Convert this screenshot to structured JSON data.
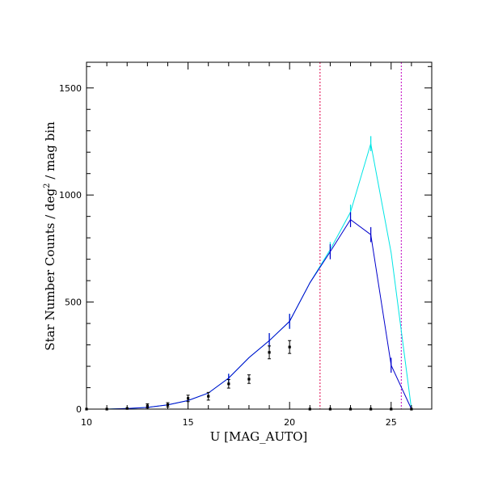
{
  "chart_data": {
    "type": "line",
    "xlabel": "U [MAG_AUTO]",
    "ylabel_main": "Star Number Counts / deg",
    "ylabel_sup": "2",
    "ylabel_tail": " / mag bin",
    "xlim": [
      10,
      27
    ],
    "ylim": [
      0,
      1620
    ],
    "x_ticks": [
      10,
      15,
      20,
      25
    ],
    "y_ticks": [
      0,
      500,
      1000,
      1500
    ],
    "x_minor_step": 1,
    "y_minor_step": 100,
    "vlines": [
      {
        "x": 21.5,
        "color": "#e0004a"
      },
      {
        "x": 25.5,
        "color": "#c000c0"
      }
    ],
    "series": [
      {
        "color": "#00e5e5",
        "x": [
          10,
          11,
          12,
          13,
          14,
          15,
          16,
          17,
          18,
          19,
          20,
          21,
          22,
          23,
          24,
          25,
          26
        ],
        "y": [
          0,
          0,
          3,
          8,
          20,
          40,
          75,
          145,
          240,
          320,
          410,
          590,
          745,
          920,
          1240,
          730,
          0
        ],
        "err": [
          0,
          0,
          0,
          0,
          0,
          0,
          0,
          20,
          0,
          35,
          35,
          0,
          35,
          35,
          35,
          0,
          0
        ]
      },
      {
        "color": "#0000cc",
        "x": [
          10,
          11,
          12,
          13,
          14,
          15,
          16,
          17,
          18,
          19,
          20,
          21,
          22,
          23,
          24,
          25,
          26
        ],
        "y": [
          0,
          0,
          3,
          8,
          20,
          40,
          75,
          145,
          240,
          320,
          410,
          590,
          735,
          885,
          815,
          205,
          0
        ],
        "err": [
          0,
          0,
          0,
          0,
          0,
          0,
          0,
          20,
          0,
          35,
          35,
          0,
          35,
          35,
          35,
          35,
          0
        ]
      }
    ],
    "points": {
      "color": "#000000",
      "x": [
        10,
        11,
        12,
        13,
        14,
        15,
        16,
        17,
        18,
        19,
        20,
        21,
        22,
        23,
        24,
        25,
        26
      ],
      "y": [
        0,
        0,
        3,
        15,
        20,
        50,
        60,
        118,
        140,
        265,
        290,
        0,
        0,
        0,
        0,
        0,
        0
      ],
      "err": [
        0,
        0,
        0,
        10,
        10,
        15,
        18,
        20,
        20,
        30,
        30,
        0,
        0,
        0,
        0,
        0,
        0
      ]
    }
  }
}
